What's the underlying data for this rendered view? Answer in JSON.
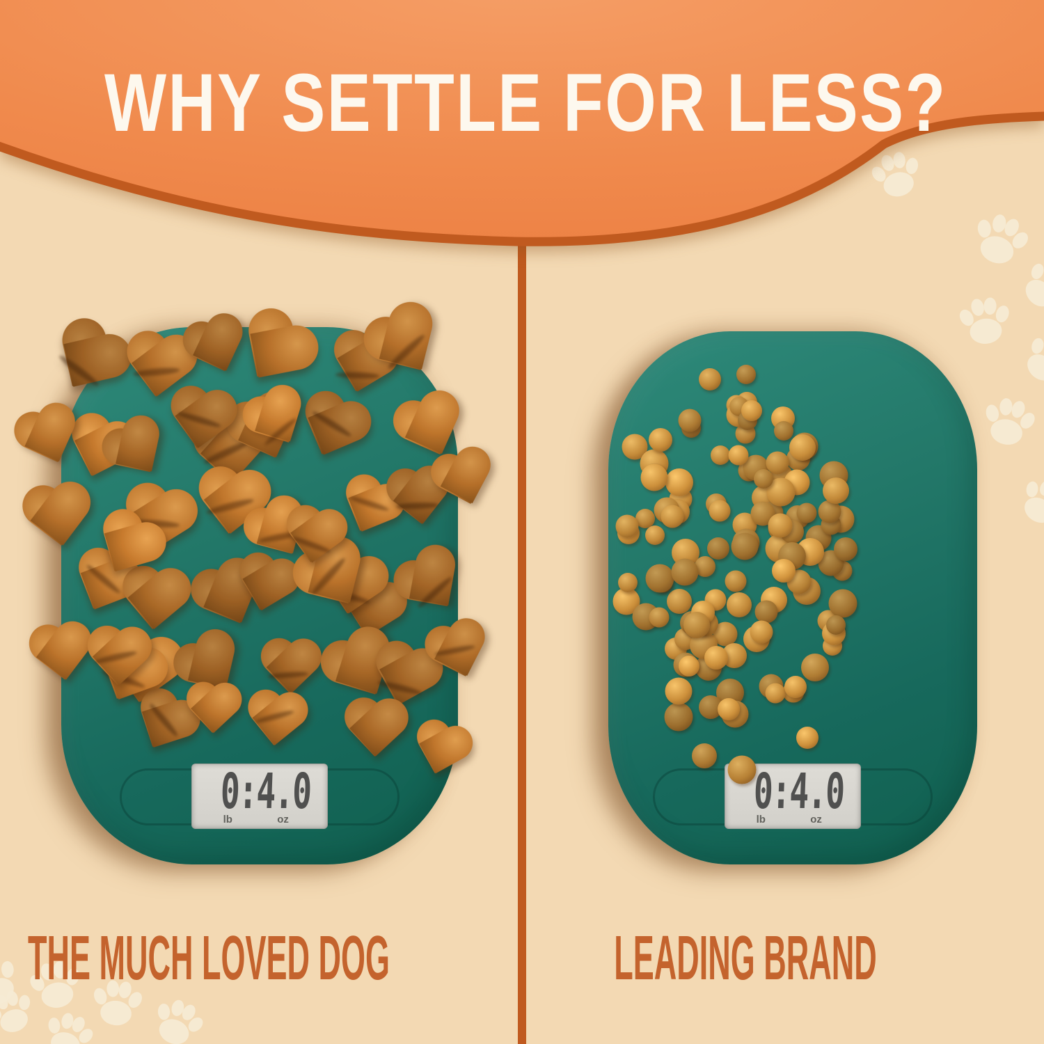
{
  "header": {
    "title": "WHY SETTLE FOR LESS?"
  },
  "left_panel": {
    "label": "THE MUCH LOVED DOG",
    "scale": {
      "reading_lb": "0:",
      "reading_oz": "4.0",
      "unit_lb": "lb",
      "unit_oz": "oz"
    },
    "treats": {
      "shape": "heart",
      "count": 46
    }
  },
  "right_panel": {
    "label": "LEADING BRAND",
    "scale": {
      "reading_lb": "0:",
      "reading_oz": "4.0",
      "unit_lb": "lb",
      "unit_oz": "oz"
    },
    "treats": {
      "shape": "round-pellet",
      "count": 118
    }
  },
  "colors": {
    "background": "#f3d9b3",
    "banner": "#f08a4d",
    "banner_rim": "#c05a1f",
    "divider": "#c05a1f",
    "title_text": "#fdf8ee",
    "label_text": "#c4632d",
    "scale_body": "#1d7467",
    "lcd_background": "#d8d7d2",
    "lcd_digits": "#505052",
    "paw_print": "#f7ecd5",
    "heart_treat": "#b06c28",
    "pellet_treat": "#b07c33"
  }
}
